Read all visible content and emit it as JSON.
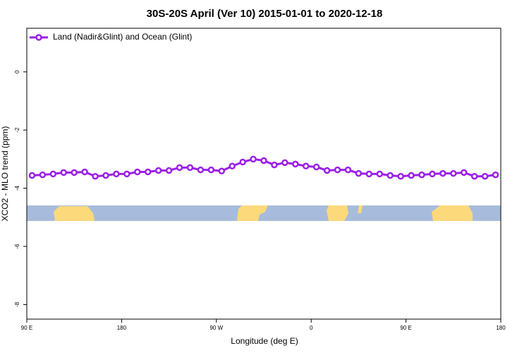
{
  "chart_data": {
    "type": "line",
    "title": "30S-20S April (Ver 10)   2015-01-01 to 2020-12-18",
    "x_label": "Longitude (deg E)",
    "y_label": "XCO2 - MLO trend (ppm)",
    "x": [
      95,
      105,
      115,
      125,
      135,
      145,
      155,
      165,
      175,
      185,
      195,
      205,
      215,
      225,
      235,
      245,
      255,
      265,
      275,
      285,
      295,
      305,
      315,
      325,
      335,
      345,
      355,
      365,
      375,
      385,
      395,
      405,
      415,
      425,
      435,
      445,
      455,
      465,
      475,
      485,
      495,
      505,
      515,
      525,
      535
    ],
    "series": [
      {
        "name": "Land (Nadir&Glint) and Ocean (Glint)",
        "color": "#9b1fe8",
        "values": [
          -3.56,
          -3.54,
          -3.51,
          -3.46,
          -3.46,
          -3.44,
          -3.59,
          -3.56,
          -3.51,
          -3.51,
          -3.44,
          -3.44,
          -3.39,
          -3.39,
          -3.29,
          -3.29,
          -3.37,
          -3.37,
          -3.41,
          -3.24,
          -3.1,
          -3.0,
          -3.05,
          -3.2,
          -3.12,
          -3.17,
          -3.24,
          -3.27,
          -3.39,
          -3.37,
          -3.37,
          -3.49,
          -3.51,
          -3.51,
          -3.56,
          -3.59,
          -3.56,
          -3.54,
          -3.51,
          -3.49,
          -3.49,
          -3.46,
          -3.59,
          -3.59,
          -3.54
        ]
      }
    ],
    "xlim": [
      90,
      540
    ],
    "xticks": [
      {
        "value": 90,
        "label": "90 E"
      },
      180,
      {
        "value": 270,
        "label": "90 W"
      },
      {
        "value": 360,
        "label": "0"
      },
      {
        "value": 450,
        "label": "90 E"
      },
      {
        "value": 540,
        "label": "180"
      }
    ],
    "ylim": [
      -8.5,
      1.5
    ],
    "yticks": [
      0,
      -2,
      -4,
      -6,
      -8
    ],
    "legend": "top-left"
  }
}
